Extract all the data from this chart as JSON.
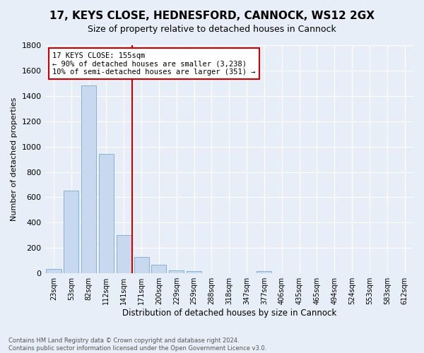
{
  "title": "17, KEYS CLOSE, HEDNESFORD, CANNOCK, WS12 2GX",
  "subtitle": "Size of property relative to detached houses in Cannock",
  "xlabel": "Distribution of detached houses by size in Cannock",
  "ylabel": "Number of detached properties",
  "footnote1": "Contains HM Land Registry data © Crown copyright and database right 2024.",
  "footnote2": "Contains public sector information licensed under the Open Government Licence v3.0.",
  "bin_labels": [
    "23sqm",
    "53sqm",
    "82sqm",
    "112sqm",
    "141sqm",
    "171sqm",
    "200sqm",
    "229sqm",
    "259sqm",
    "288sqm",
    "318sqm",
    "347sqm",
    "377sqm",
    "406sqm",
    "435sqm",
    "465sqm",
    "494sqm",
    "524sqm",
    "553sqm",
    "583sqm",
    "612sqm"
  ],
  "bar_heights": [
    35,
    650,
    1480,
    940,
    300,
    130,
    70,
    25,
    20,
    0,
    0,
    0,
    20,
    0,
    0,
    0,
    0,
    0,
    0,
    0,
    0
  ],
  "bar_color": "#c8d8ee",
  "bar_edge_color": "#7aaacf",
  "vline_x": 5,
  "vline_color": "#cc0000",
  "annotation_text": "17 KEYS CLOSE: 155sqm\n← 90% of detached houses are smaller (3,238)\n10% of semi-detached houses are larger (351) →",
  "annotation_box_color": "#ffffff",
  "annotation_box_edge": "#cc0000",
  "ylim": [
    0,
    1800
  ],
  "yticks": [
    0,
    200,
    400,
    600,
    800,
    1000,
    1200,
    1400,
    1600,
    1800
  ],
  "background_color": "#e8eef8",
  "grid_color": "#ffffff",
  "title_fontsize": 11,
  "subtitle_fontsize": 9
}
